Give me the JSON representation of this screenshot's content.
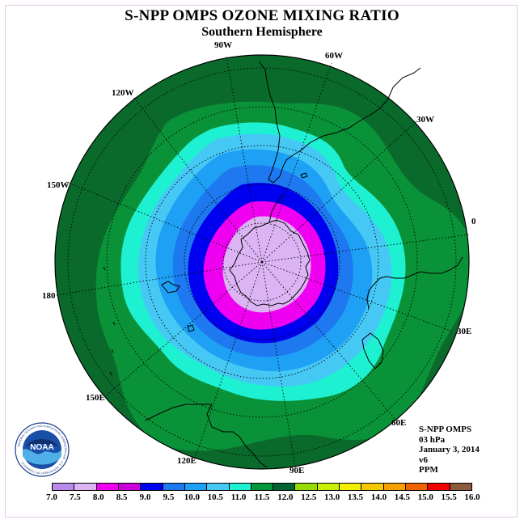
{
  "title": "S-NPP OMPS OZONE MIXING RATIO",
  "subtitle": "Southern Hemisphere",
  "longitude_labels": {
    "lon_90w": "90W",
    "lon_60w": "60W",
    "lon_30w": "30W",
    "lon_0": "0",
    "lon_30e": "30E",
    "lon_60e": "60E",
    "lon_90e": "90E",
    "lon_120e": "120E",
    "lon_150e": "150E",
    "lon_180": "180",
    "lon_150w": "150W",
    "lon_120w": "120W"
  },
  "info": {
    "instrument": "S-NPP OMPS",
    "level": "03 hPa",
    "date": "January 3, 2014",
    "version": "v6",
    "units": "PPM"
  },
  "logo": {
    "text": "NOAA",
    "ring_text": "NATIONAL OCEANIC AND ATMOSPHERIC ADMINISTRATION · U.S. DEPARTMENT OF COMMERCE"
  },
  "colorbar": {
    "ticks": [
      "7.0",
      "7.5",
      "8.0",
      "8.5",
      "9.0",
      "9.5",
      "10.0",
      "10.5",
      "11.0",
      "11.5",
      "12.0",
      "12.5",
      "13.0",
      "13.5",
      "14.0",
      "14.5",
      "15.0",
      "15.5",
      "16.0"
    ],
    "colors": [
      "#b98ae8",
      "#dcb4f4",
      "#f000f0",
      "#cc00d8",
      "#0000f0",
      "#1e78f0",
      "#1ea0f5",
      "#46c8f5",
      "#1ef0d2",
      "#00963c",
      "#006432",
      "#96dc00",
      "#c8f000",
      "#f0f000",
      "#f5c800",
      "#f5a000",
      "#f06400",
      "#f00000",
      "#8c5a3c"
    ]
  },
  "field_colors": {
    "outer_dark_green": "#0a6a2c",
    "green": "#0a9238",
    "cyan": "#1ef0d2",
    "light_blue": "#46c8f5",
    "blue": "#1ea0f5",
    "deep_sky": "#1e78f0",
    "royal_blue": "#0000f0",
    "magenta": "#f000f0",
    "lavender": "#dcb4f4"
  }
}
